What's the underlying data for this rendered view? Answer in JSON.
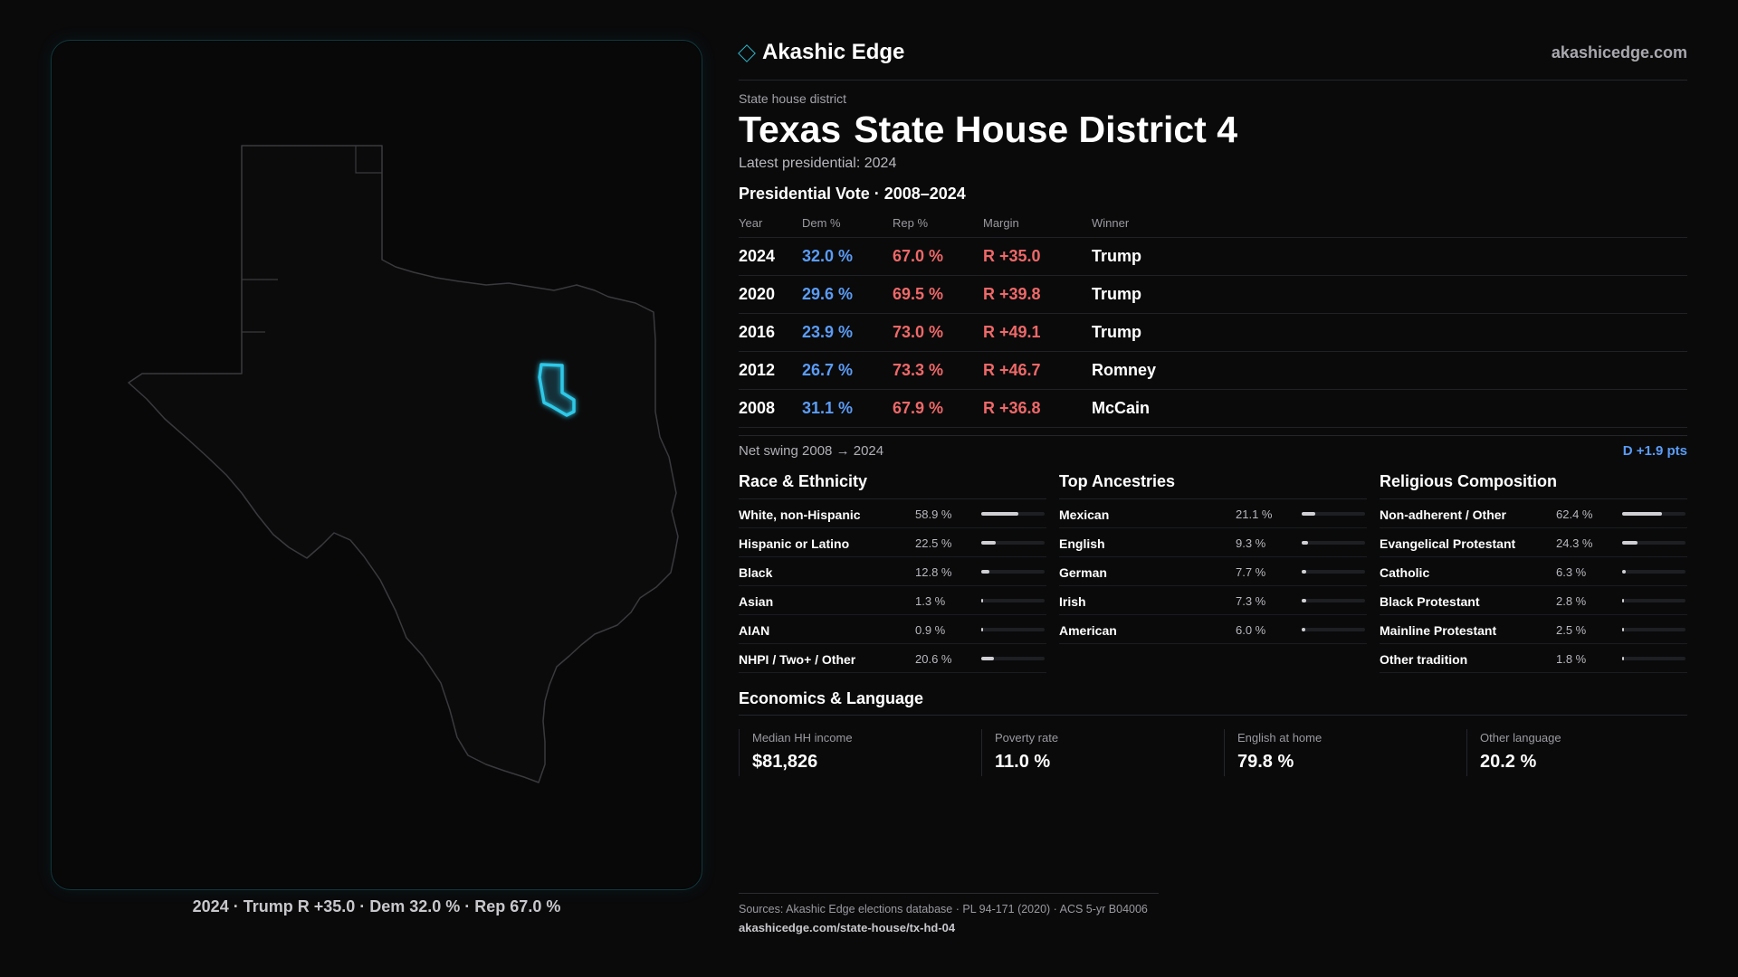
{
  "brand": {
    "name": "Akashic Edge",
    "url": "akashicedge.com",
    "accent": "#2fb6c9"
  },
  "district": {
    "type_label": "State house district",
    "state": "Texas",
    "name": "State House District 4",
    "latest": "Latest presidential: 2024"
  },
  "presidential": {
    "title": "Presidential Vote · 2008–2024",
    "columns": [
      "Year",
      "Dem %",
      "Rep %",
      "Margin",
      "Winner"
    ],
    "rows": [
      {
        "year": "2024",
        "dem": "32.0 %",
        "rep": "67.0 %",
        "margin": "R +35.0",
        "winner": "Trump"
      },
      {
        "year": "2020",
        "dem": "29.6 %",
        "rep": "69.5 %",
        "margin": "R +39.8",
        "winner": "Trump"
      },
      {
        "year": "2016",
        "dem": "23.9 %",
        "rep": "73.0 %",
        "margin": "R +49.1",
        "winner": "Trump"
      },
      {
        "year": "2012",
        "dem": "26.7 %",
        "rep": "73.3 %",
        "margin": "R +46.7",
        "winner": "Romney"
      },
      {
        "year": "2008",
        "dem": "31.1 %",
        "rep": "67.9 %",
        "margin": "R +36.8",
        "winner": "McCain"
      }
    ],
    "colors": {
      "dem": "#5b9cf5",
      "rep": "#ef6868"
    }
  },
  "swing": {
    "label": "Net swing 2008 → 2024",
    "value": "D +1.9 pts"
  },
  "race": {
    "title": "Race & Ethnicity",
    "rows": [
      {
        "label": "White, non-Hispanic",
        "value": "58.9 %",
        "pct": 58.9
      },
      {
        "label": "Hispanic or Latino",
        "value": "22.5 %",
        "pct": 22.5
      },
      {
        "label": "Black",
        "value": "12.8 %",
        "pct": 12.8
      },
      {
        "label": "Asian",
        "value": "1.3 %",
        "pct": 1.3
      },
      {
        "label": "AIAN",
        "value": "0.9 %",
        "pct": 0.9
      },
      {
        "label": "NHPI / Two+ / Other",
        "value": "20.6 %",
        "pct": 20.6
      }
    ]
  },
  "ancestry": {
    "title": "Top Ancestries",
    "rows": [
      {
        "label": "Mexican",
        "value": "21.1 %",
        "pct": 21.1
      },
      {
        "label": "English",
        "value": "9.3 %",
        "pct": 9.3
      },
      {
        "label": "German",
        "value": "7.7 %",
        "pct": 7.7
      },
      {
        "label": "Irish",
        "value": "7.3 %",
        "pct": 7.3
      },
      {
        "label": "American",
        "value": "6.0 %",
        "pct": 6.0
      }
    ]
  },
  "religion": {
    "title": "Religious Composition",
    "rows": [
      {
        "label": "Non-adherent / Other",
        "value": "62.4 %",
        "pct": 62.4
      },
      {
        "label": "Evangelical Protestant",
        "value": "24.3 %",
        "pct": 24.3
      },
      {
        "label": "Catholic",
        "value": "6.3 %",
        "pct": 6.3
      },
      {
        "label": "Black Protestant",
        "value": "2.8 %",
        "pct": 2.8
      },
      {
        "label": "Mainline Protestant",
        "value": "2.5 %",
        "pct": 2.5
      },
      {
        "label": "Other tradition",
        "value": "1.8 %",
        "pct": 1.8
      }
    ]
  },
  "economics": {
    "title": "Economics & Language",
    "items": [
      {
        "label": "Median HH income",
        "value": "$81,826"
      },
      {
        "label": "Poverty rate",
        "value": "11.0 %"
      },
      {
        "label": "English at home",
        "value": "79.8 %"
      },
      {
        "label": "Other language",
        "value": "20.2 %"
      }
    ]
  },
  "map": {
    "caption": "2024 · Trump R +35.0 · Dem 32.0 % · Rep 67.0 %",
    "highlight_color": "#2ec8e8"
  },
  "sources": {
    "text": "Sources: Akashic Edge elections database · PL 94-171 (2020) · ACS 5-yr B04006",
    "url": "akashicedge.com/state-house/tx-hd-04"
  }
}
